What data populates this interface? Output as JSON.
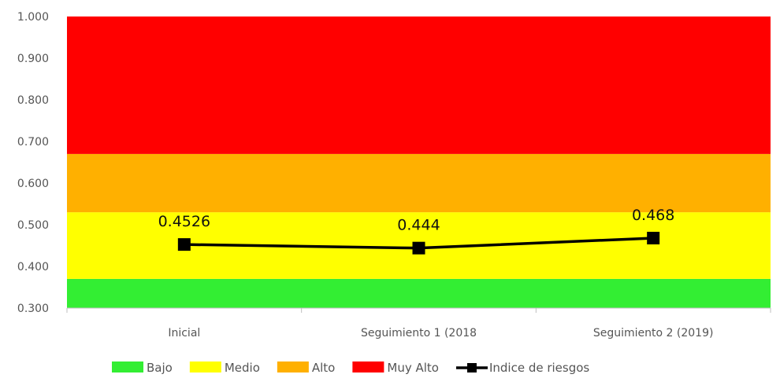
{
  "chart_data": {
    "type": "line",
    "title": "",
    "xlabel": "",
    "ylabel": "",
    "ylim": [
      0.3,
      1.0
    ],
    "yticks": [
      "0.300",
      "0.400",
      "0.500",
      "0.600",
      "0.700",
      "0.800",
      "0.900",
      "1.000"
    ],
    "categories": [
      "Inicial",
      "Seguimiento 1 (2018",
      "Seguimiento 2 (2019)"
    ],
    "bands": [
      {
        "name": "Bajo",
        "from": 0.3,
        "to": 0.37,
        "color": "#33ee33"
      },
      {
        "name": "Medio",
        "from": 0.37,
        "to": 0.53,
        "color": "#ffff00"
      },
      {
        "name": "Alto",
        "from": 0.53,
        "to": 0.67,
        "color": "#ffb000"
      },
      {
        "name": "Muy Alto",
        "from": 0.67,
        "to": 1.0,
        "color": "#ff0000"
      }
    ],
    "series": [
      {
        "name": "Indice de riesgos",
        "values": [
          0.4526,
          0.444,
          0.468
        ],
        "labels": [
          "0.4526",
          "0.444",
          "0.468"
        ],
        "color": "#000000",
        "marker": "square"
      }
    ],
    "legend_position": "bottom",
    "grid": false
  }
}
